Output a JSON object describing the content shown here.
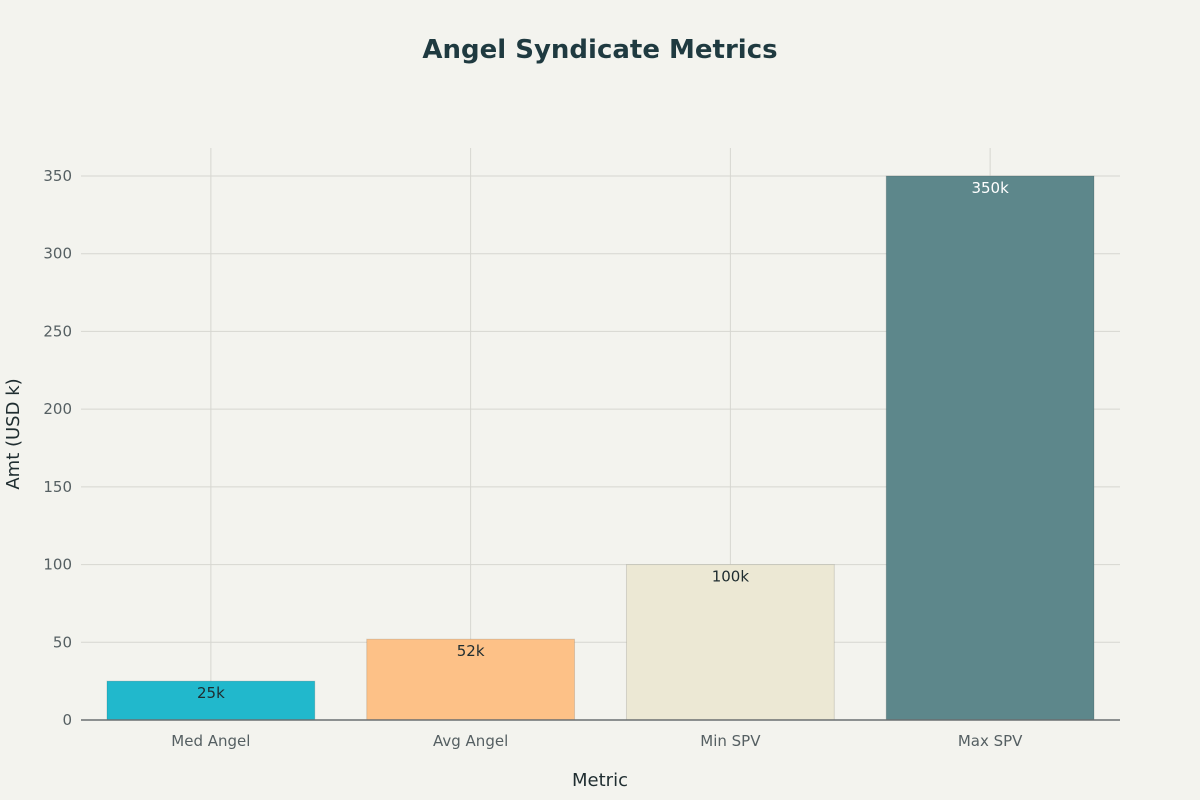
{
  "chart_data": {
    "type": "bar",
    "title": "Angel Syndicate Metrics",
    "xlabel": "Metric",
    "ylabel": "Amt (USD k)",
    "categories": [
      "Med Angel",
      "Avg Angel",
      "Min SPV",
      "Max SPV"
    ],
    "values": [
      25,
      52,
      100,
      350
    ],
    "data_labels": [
      "25k",
      "52k",
      "100k",
      "350k"
    ],
    "ylim": [
      0,
      368
    ],
    "yticks": [
      0,
      50,
      100,
      150,
      200,
      250,
      300,
      350
    ],
    "grid": true,
    "legend": "none",
    "colors": {
      "bars": [
        "#21b8cc",
        "#fdc187",
        "#ece8d4",
        "#5d878b"
      ],
      "labels": [
        "#1f2d30",
        "#1f2d30",
        "#1f2d30",
        "#ffffff"
      ],
      "background": "#f3f3ee"
    }
  }
}
